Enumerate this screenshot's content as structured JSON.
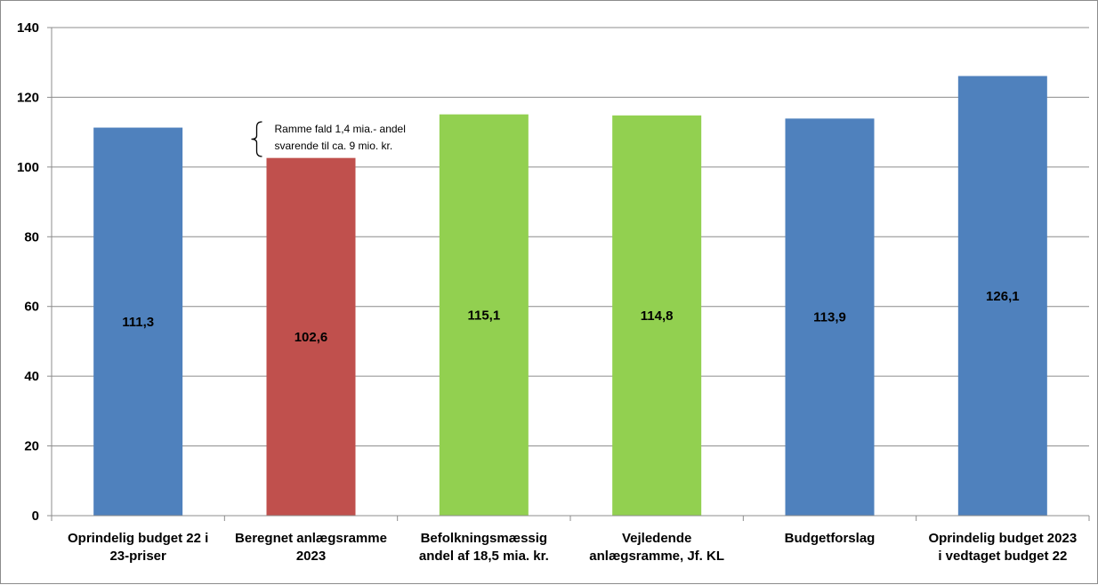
{
  "chart_data": {
    "type": "bar",
    "categories": [
      [
        "Oprindelig budget 22 i",
        "23-priser"
      ],
      [
        "Beregnet anlægsramme",
        "2023"
      ],
      [
        "Befolkningsmæssig",
        "andel af 18,5 mia. kr."
      ],
      [
        "Vejledende",
        "anlægsramme, Jf. KL"
      ],
      [
        "Budgetforslag"
      ],
      [
        "Oprindelig budget 2023",
        "i vedtaget budget 22"
      ]
    ],
    "values": [
      111.3,
      102.6,
      115.1,
      114.8,
      113.9,
      126.1
    ],
    "data_labels": [
      "111,3",
      "102,6",
      "115,1",
      "114,8",
      "113,9",
      "126,1"
    ],
    "bar_colors": [
      "#4f81bd",
      "#c0504d",
      "#92d050",
      "#92d050",
      "#4f81bd",
      "#4f81bd"
    ],
    "ylim": [
      0,
      140
    ],
    "yticks": [
      0,
      20,
      40,
      60,
      80,
      100,
      120,
      140
    ],
    "grid": true,
    "title": "",
    "xlabel": "",
    "ylabel": "",
    "annotation": {
      "bar_index": 1,
      "lines": [
        "Ramme fald 1,4 mia.- andel",
        "svarende til  ca. 9 mio. kr."
      ]
    }
  }
}
